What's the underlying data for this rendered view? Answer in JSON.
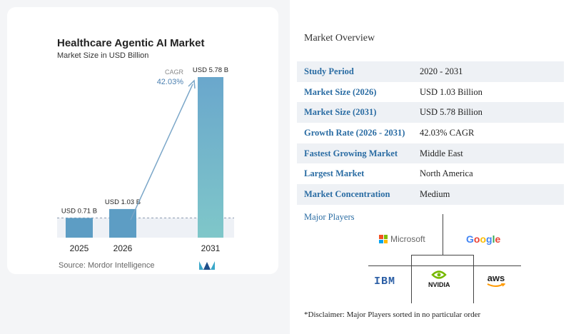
{
  "chart_data": {
    "type": "bar",
    "title": "Healthcare Agentic AI Market",
    "subtitle": "Market Size in USD Billion",
    "categories": [
      "2025",
      "2026",
      "2031"
    ],
    "values": [
      0.71,
      1.03,
      5.78
    ],
    "data_labels": [
      "USD 0.71 B",
      "USD 1.03 B",
      "USD 5.78 B"
    ],
    "cagr_label": "CAGR",
    "cagr_value": "42.03%",
    "ylim": [
      0,
      5.78
    ],
    "colors": {
      "bar_short": "#5d9dc4",
      "bar_tall_top": "#6aa7cc",
      "bar_tall_bottom": "#7fc7c9",
      "arrow": "#7aa6c8",
      "text": "#222222",
      "cagr": "#4a7fb0"
    }
  },
  "source": "Source: Mordor Intelligence",
  "overview": {
    "title": "Market Overview",
    "rows": [
      {
        "key": "Study Period",
        "value": "2020 - 2031"
      },
      {
        "key": "Market Size (2026)",
        "value": "USD 1.03 Billion"
      },
      {
        "key": "Market Size (2031)",
        "value": "USD 5.78 Billion"
      },
      {
        "key": "Growth Rate (2026 - 2031)",
        "value": "42.03% CAGR"
      },
      {
        "key": "Fastest Growing Market",
        "value": "Middle East"
      },
      {
        "key": "Largest Market",
        "value": "North America"
      },
      {
        "key": "Market Concentration",
        "value": "Medium"
      }
    ]
  },
  "players": {
    "title": "Major Players",
    "microsoft": "Microsoft",
    "google": "Google",
    "ibm": "IBM",
    "nvidia": "NVIDIA",
    "aws": "aws"
  },
  "disclaimer": "*Disclaimer: Major Players sorted in no particular order"
}
